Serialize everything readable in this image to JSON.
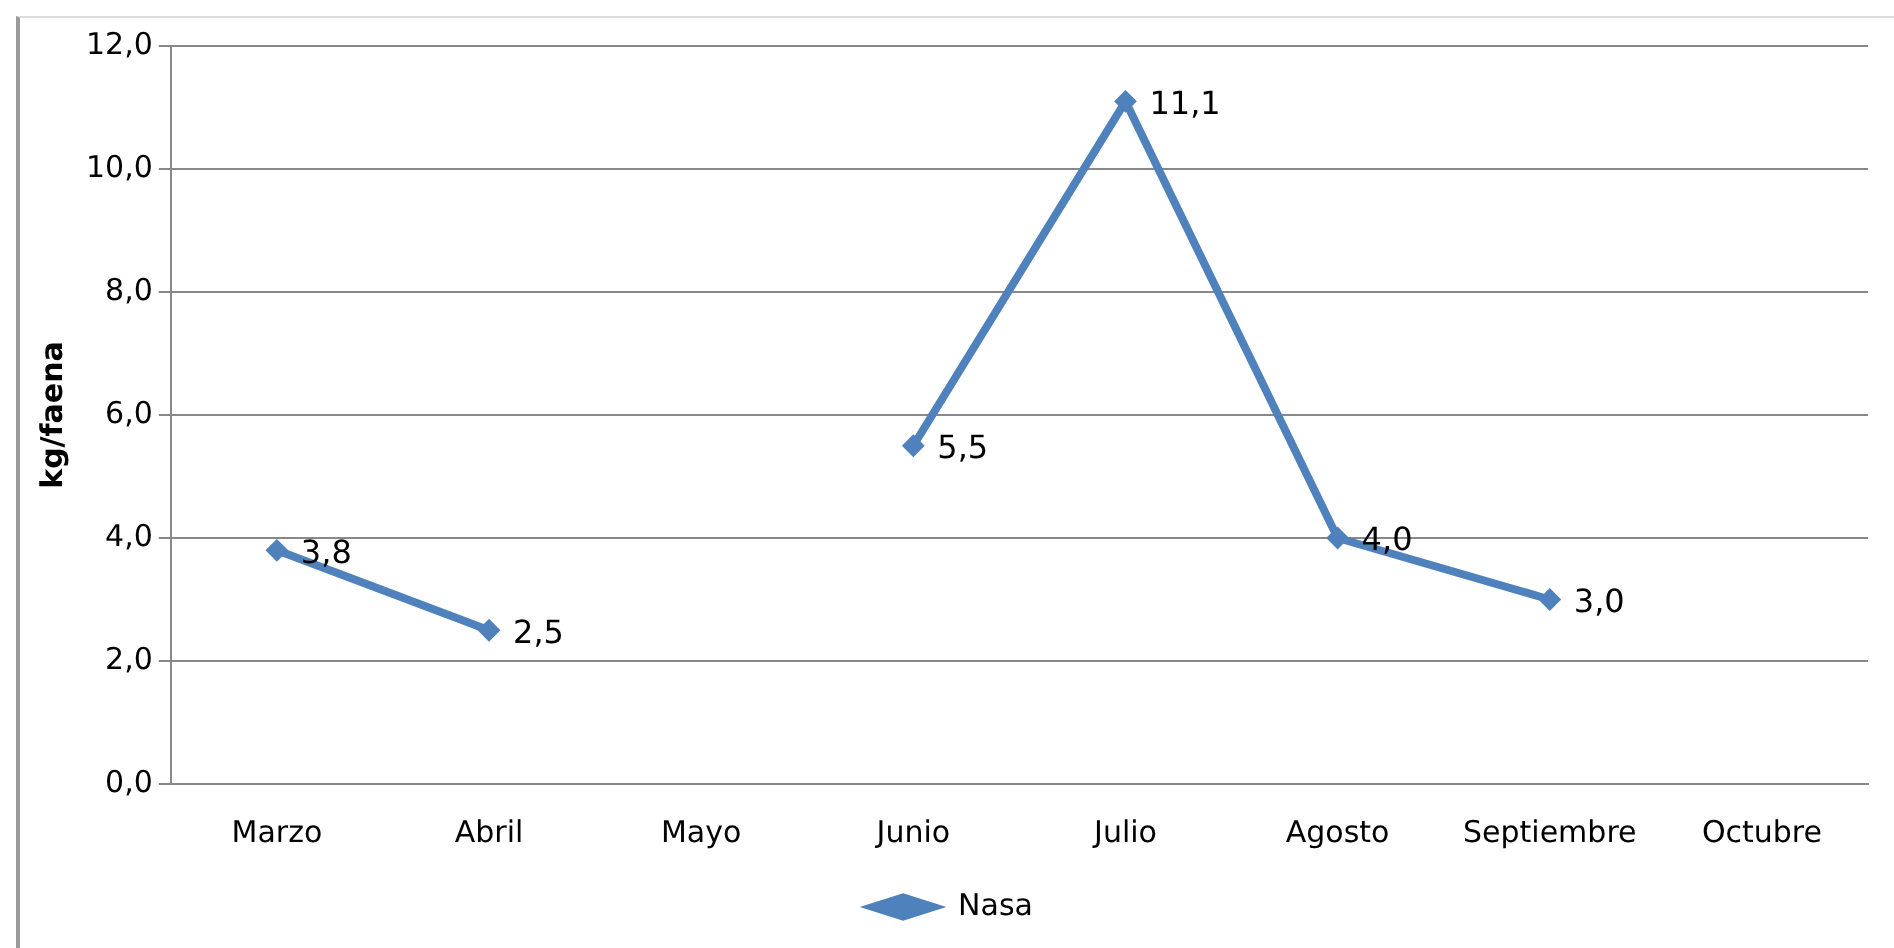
{
  "chart_data": {
    "type": "line",
    "ylabel": "kg/faena",
    "categories": [
      "Marzo",
      "Abril",
      "Mayo",
      "Junio",
      "Julio",
      "Agosto",
      "Septiembre",
      "Octubre"
    ],
    "series": [
      {
        "name": "Nasa",
        "color": "#4f81bd",
        "values": [
          3.8,
          2.5,
          null,
          5.5,
          11.1,
          4.0,
          3.0,
          null
        ],
        "value_labels": [
          "3,8",
          "2,5",
          null,
          "5,5",
          "11,1",
          "4,0",
          "3,0",
          null
        ]
      }
    ],
    "ylim": [
      0,
      12
    ],
    "yticks": [
      {
        "value": 0,
        "label": "0,0"
      },
      {
        "value": 2,
        "label": "2,0"
      },
      {
        "value": 4,
        "label": "4,0"
      },
      {
        "value": 6,
        "label": "6,0"
      },
      {
        "value": 8,
        "label": "8,0"
      },
      {
        "value": 10,
        "label": "10,0"
      },
      {
        "value": 12,
        "label": "12,0"
      }
    ],
    "grid": "y",
    "legend": "bottom",
    "marker": "diamond",
    "line_style": "solid"
  }
}
